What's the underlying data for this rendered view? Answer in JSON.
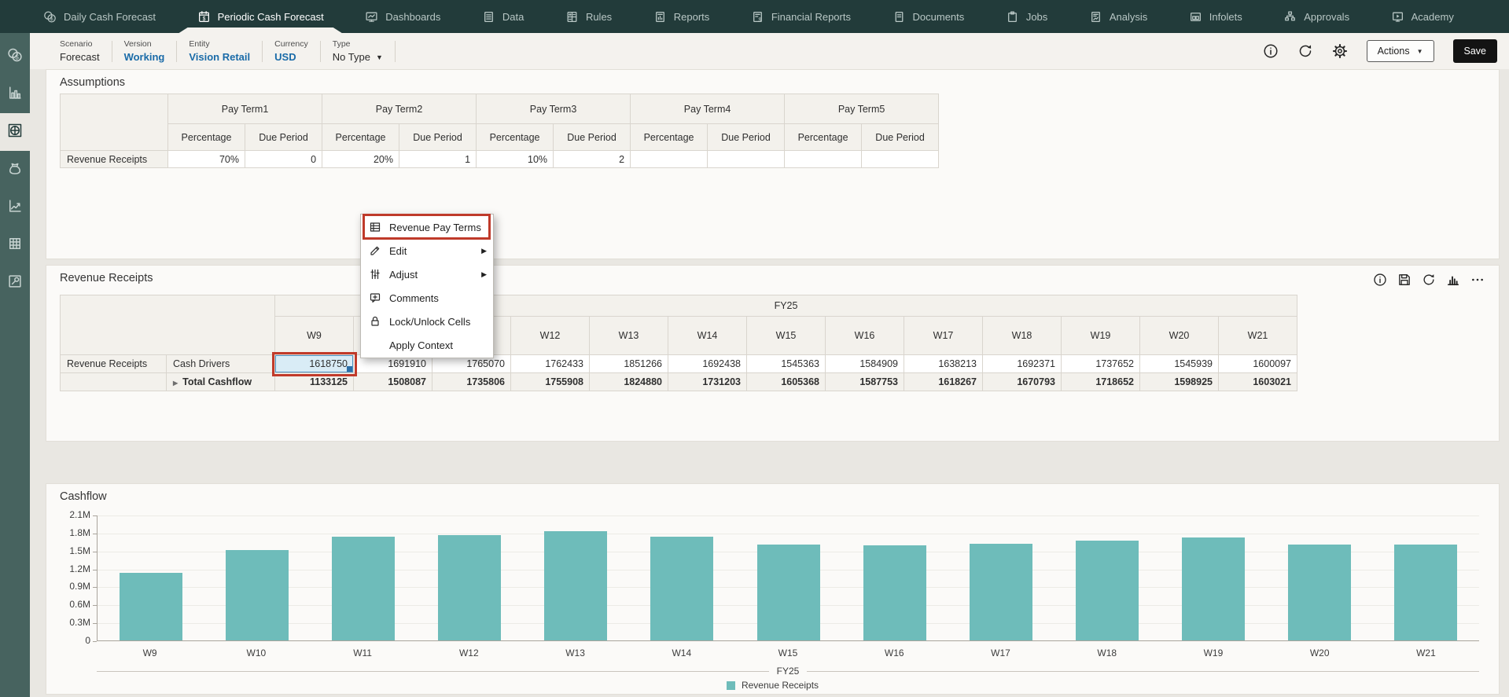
{
  "glyphs": {
    "caret_down": "▼",
    "submenu_arrow": "▶",
    "collapsed_triangle": "▶"
  },
  "colors": {
    "bar_teal": "#6ebcba",
    "highlight_red": "#bf3a2a",
    "link_blue": "#1a6ba8",
    "selected_cell": "#d9ecf6"
  },
  "nav": {
    "tabs": [
      {
        "label": "Daily Cash Forecast",
        "icon": "coins-icon",
        "active": false
      },
      {
        "label": "Periodic Cash Forecast",
        "icon": "calendar-cash-icon",
        "active": true
      },
      {
        "label": "Dashboards",
        "icon": "monitor-chart-icon",
        "active": false
      },
      {
        "label": "Data",
        "icon": "doc-lines-icon",
        "active": false
      },
      {
        "label": "Rules",
        "icon": "calculator-icon",
        "active": false
      },
      {
        "label": "Reports",
        "icon": "report-icon",
        "active": false
      },
      {
        "label": "Financial Reports",
        "icon": "report-cash-icon",
        "active": false
      },
      {
        "label": "Documents",
        "icon": "document-icon",
        "active": false
      },
      {
        "label": "Jobs",
        "icon": "clipboard-icon",
        "active": false
      },
      {
        "label": "Analysis",
        "icon": "analysis-icon",
        "active": false
      },
      {
        "label": "Infolets",
        "icon": "infolets-icon",
        "active": false
      },
      {
        "label": "Approvals",
        "icon": "org-chart-icon",
        "active": false
      },
      {
        "label": "Academy",
        "icon": "academy-icon",
        "active": false
      }
    ]
  },
  "sidebar": {
    "items": [
      {
        "name": "coins",
        "icon": "coins-icon",
        "active": false
      },
      {
        "name": "bar-chart",
        "icon": "bar-chart-icon",
        "active": false
      },
      {
        "name": "globe-grid",
        "icon": "globe-grid-icon",
        "active": true
      },
      {
        "name": "funds",
        "icon": "funds-icon",
        "active": false
      },
      {
        "name": "trend-chart",
        "icon": "trend-chart-icon",
        "active": false
      },
      {
        "name": "data-grid",
        "icon": "grid-icon",
        "active": false
      },
      {
        "name": "tools",
        "icon": "wrench-icon",
        "active": false
      }
    ]
  },
  "pov": {
    "fields": [
      {
        "label": "Scenario",
        "value": "Forecast",
        "link": false,
        "dropdown": false
      },
      {
        "label": "Version",
        "value": "Working",
        "link": true,
        "dropdown": false
      },
      {
        "label": "Entity",
        "value": "Vision Retail",
        "link": true,
        "dropdown": false
      },
      {
        "label": "Currency",
        "value": "USD",
        "link": true,
        "dropdown": false
      },
      {
        "label": "Type",
        "value": "No Type",
        "link": false,
        "dropdown": true
      }
    ],
    "toolbar_icons": [
      "info-icon",
      "refresh-icon",
      "gear-icon"
    ],
    "actions_label": "Actions",
    "save_label": "Save"
  },
  "assumptions": {
    "title": "Assumptions",
    "column_groups": [
      "Pay Term1",
      "Pay Term2",
      "Pay Term3",
      "Pay Term4",
      "Pay Term5"
    ],
    "sub_headers": [
      "Percentage",
      "Due Period"
    ],
    "rows": [
      {
        "label": "Revenue Receipts",
        "cells": [
          "70%",
          "0",
          "20%",
          "1",
          "10%",
          "2",
          "",
          "",
          "",
          ""
        ]
      }
    ]
  },
  "context_menu": {
    "items": [
      {
        "label": "Revenue Pay Terms",
        "icon": "menu-grid-icon",
        "highlighted": true,
        "submenu": false
      },
      {
        "label": "Edit",
        "icon": "pencil-icon",
        "highlighted": false,
        "submenu": true
      },
      {
        "label": "Adjust",
        "icon": "sliders-icon",
        "highlighted": false,
        "submenu": true
      },
      {
        "label": "Comments",
        "icon": "comment-icon",
        "highlighted": false,
        "submenu": false
      },
      {
        "label": "Lock/Unlock Cells",
        "icon": "lock-icon",
        "highlighted": false,
        "submenu": false
      },
      {
        "label": "Apply Context",
        "icon": "",
        "highlighted": false,
        "submenu": false
      }
    ]
  },
  "revenue_grid": {
    "title": "Revenue Receipts",
    "toolbar_icons": [
      "info-icon",
      "save-disk-icon",
      "refresh-icon",
      "chart-bars-icon",
      "ellipsis-icon"
    ],
    "year_header": "FY25",
    "weeks": [
      "W9",
      "W10",
      "W11",
      "W12",
      "W13",
      "W14",
      "W15",
      "W16",
      "W17",
      "W18",
      "W19",
      "W20",
      "W21"
    ],
    "rows": [
      {
        "group_label": "Revenue Receipts",
        "label": "Cash Drivers",
        "bold": false,
        "expandable": false,
        "selected_col": 0,
        "values": [
          "1618750",
          "1691910",
          "1765070",
          "1762433",
          "1851266",
          "1692438",
          "1545363",
          "1584909",
          "1638213",
          "1692371",
          "1737652",
          "1545939",
          "1600097"
        ]
      },
      {
        "group_label": "",
        "label": "Total Cashflow",
        "bold": true,
        "expandable": true,
        "selected_col": -1,
        "values": [
          "1133125",
          "1508087",
          "1735806",
          "1755908",
          "1824880",
          "1731203",
          "1605368",
          "1587753",
          "1618267",
          "1670793",
          "1718652",
          "1598925",
          "1603021"
        ]
      }
    ]
  },
  "chart_data": {
    "type": "bar",
    "title": "Cashflow",
    "categories": [
      "W9",
      "W10",
      "W11",
      "W12",
      "W13",
      "W14",
      "W15",
      "W16",
      "W17",
      "W18",
      "W19",
      "W20",
      "W21"
    ],
    "series": [
      {
        "name": "Revenue Receipts",
        "values": [
          1133125,
          1508087,
          1735806,
          1755908,
          1824880,
          1731203,
          1605368,
          1587753,
          1618267,
          1670793,
          1718652,
          1598925,
          1603021
        ]
      }
    ],
    "xlabel": "FY25",
    "ylabel": "",
    "ylim": [
      0,
      2100000
    ],
    "y_ticks": [
      "2.1M",
      "1.8M",
      "1.5M",
      "1.2M",
      "0.9M",
      "0.6M",
      "0.3M",
      "0"
    ],
    "grid": true,
    "legend_position": "bottom",
    "bar_color": "#6ebcba"
  }
}
